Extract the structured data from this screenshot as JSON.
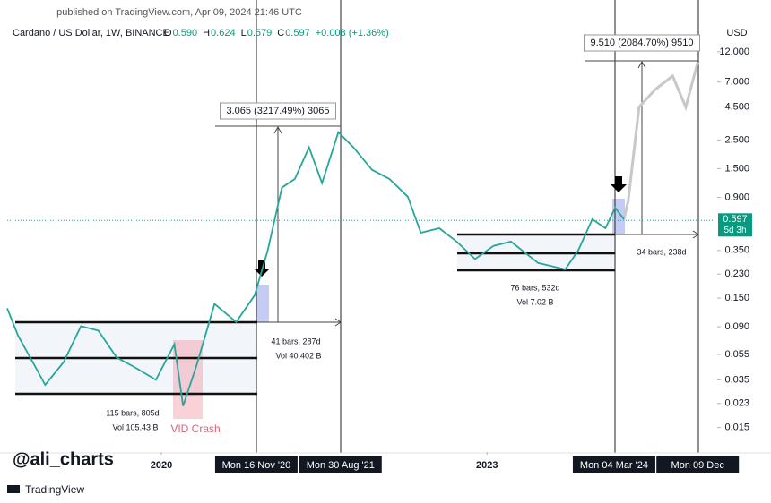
{
  "chart_data": {
    "type": "line",
    "log_scale": true,
    "grid": false,
    "published": "published on TradingView.com, Apr 09, 2024 21:46 UTC",
    "title": "Cardano / US Dollar, 1W, BINANCE",
    "ohlc": [
      {
        "key": "O",
        "value": "0.590"
      },
      {
        "key": "H",
        "value": "0.624"
      },
      {
        "key": "L",
        "value": "0.579"
      },
      {
        "key": "C",
        "value": "0.597"
      }
    ],
    "change": "+0.008 (+1.36%)",
    "currency": "USD",
    "color": "#26a69a",
    "x": [
      2018.58,
      2018.68,
      2018.84,
      2018.93,
      2019.1,
      2019.26,
      2019.42,
      2019.59,
      2019.75,
      2019.95,
      2020.12,
      2020.2,
      2020.32,
      2020.49,
      2020.69,
      2020.86,
      2020.98,
      2021.11,
      2021.23,
      2021.36,
      2021.48,
      2021.63,
      2021.77,
      2021.94,
      2022.1,
      2022.27,
      2022.39,
      2022.56,
      2022.72,
      2022.89,
      2023.06,
      2023.22,
      2023.47,
      2023.72,
      2023.84,
      2023.97,
      2024.09,
      2024.18,
      2024.26
    ],
    "values": [
      0.125,
      0.077,
      0.044,
      0.032,
      0.048,
      0.091,
      0.084,
      0.052,
      0.044,
      0.035,
      0.066,
      0.022,
      0.044,
      0.135,
      0.098,
      0.158,
      0.35,
      1.07,
      1.25,
      2.19,
      1.16,
      2.87,
      2.19,
      1.47,
      1.25,
      0.91,
      0.48,
      0.52,
      0.41,
      0.3,
      0.38,
      0.41,
      0.28,
      0.25,
      0.35,
      0.61,
      0.52,
      0.75,
      0.61
    ],
    "projection": {
      "color": "#c8c8c8",
      "x": [
        2024.26,
        2024.3,
        2024.4,
        2024.55,
        2024.71,
        2024.83,
        2024.94
      ],
      "values": [
        0.61,
        0.84,
        4.48,
        6.15,
        7.8,
        4.48,
        9.9
      ]
    },
    "last_price": 0.597,
    "countdown": "5d 3h",
    "xlim": [
      2018.58,
      2025.12
    ],
    "xticks": [
      2020,
      2023
    ],
    "ylim": [
      0.0097,
      18.7
    ],
    "yticks": [
      {
        "value": 12,
        "label": "12.000"
      },
      {
        "value": 7,
        "label": "7.000"
      },
      {
        "value": 4.5,
        "label": "4.500"
      },
      {
        "value": 2.5,
        "label": "2.500"
      },
      {
        "value": 1.5,
        "label": "1.500"
      },
      {
        "value": 0.9,
        "label": "0.900"
      },
      {
        "value": 0.35,
        "label": "0.350"
      },
      {
        "value": 0.23,
        "label": "0.230"
      },
      {
        "value": 0.15,
        "label": "0.150"
      },
      {
        "value": 0.09,
        "label": "0.090"
      },
      0.055,
      0.035,
      0.023,
      0.015
    ],
    "markers": [
      {
        "x": 2020.875,
        "label": "Mon 16 Nov '20"
      },
      {
        "x": 2021.65,
        "label": "Mon 30 Aug '21"
      },
      {
        "x": 2024.17,
        "label": "Mon 04 Mar '24"
      },
      {
        "x": 2024.94,
        "label": "Mon 09 Dec"
      }
    ],
    "annotations": [
      "3.065 (3217.49%) 3065",
      "41 bars, 287d",
      "Vol 40.402 B",
      "9.510 (2084.70%) 9510",
      "34 bars, 238d",
      "115 bars, 805d",
      "Vol 105.43 B",
      "76 bars, 532d",
      "Vol 7.02 B",
      "VID Crash"
    ],
    "watermark": "@ali_charts",
    "footer": "TradingView"
  }
}
